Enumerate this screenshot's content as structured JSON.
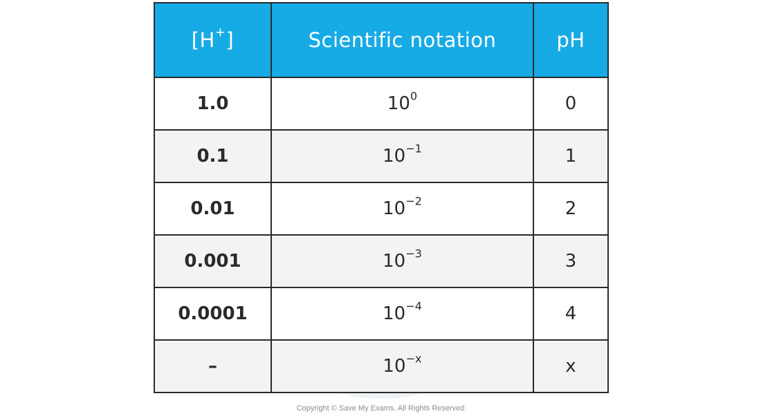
{
  "table": {
    "headers": {
      "conc_main": "[H",
      "conc_sup": "+",
      "conc_close": "]",
      "sci": "Scientific notation",
      "ph": "pH"
    },
    "rows": [
      {
        "conc": "1.0",
        "sci_base": "10",
        "sci_exp": "0",
        "ph": "0"
      },
      {
        "conc": "0.1",
        "sci_base": "10",
        "sci_exp": "−1",
        "ph": "1"
      },
      {
        "conc": "0.01",
        "sci_base": "10",
        "sci_exp": "−2",
        "ph": "2"
      },
      {
        "conc": "0.001",
        "sci_base": "10",
        "sci_exp": "−3",
        "ph": "3"
      },
      {
        "conc": "0.0001",
        "sci_base": "10",
        "sci_exp": "−4",
        "ph": "4"
      },
      {
        "conc": "–",
        "sci_base": "10",
        "sci_exp": "−x",
        "ph": "x"
      }
    ]
  },
  "footer": {
    "copyright": "Copyright © Save My Exams. All Rights Reserved"
  },
  "colors": {
    "header_bg": "#17abe6",
    "header_text": "#ffffff",
    "border": "#2a2a2a",
    "stripe": "#f3f3f3"
  }
}
